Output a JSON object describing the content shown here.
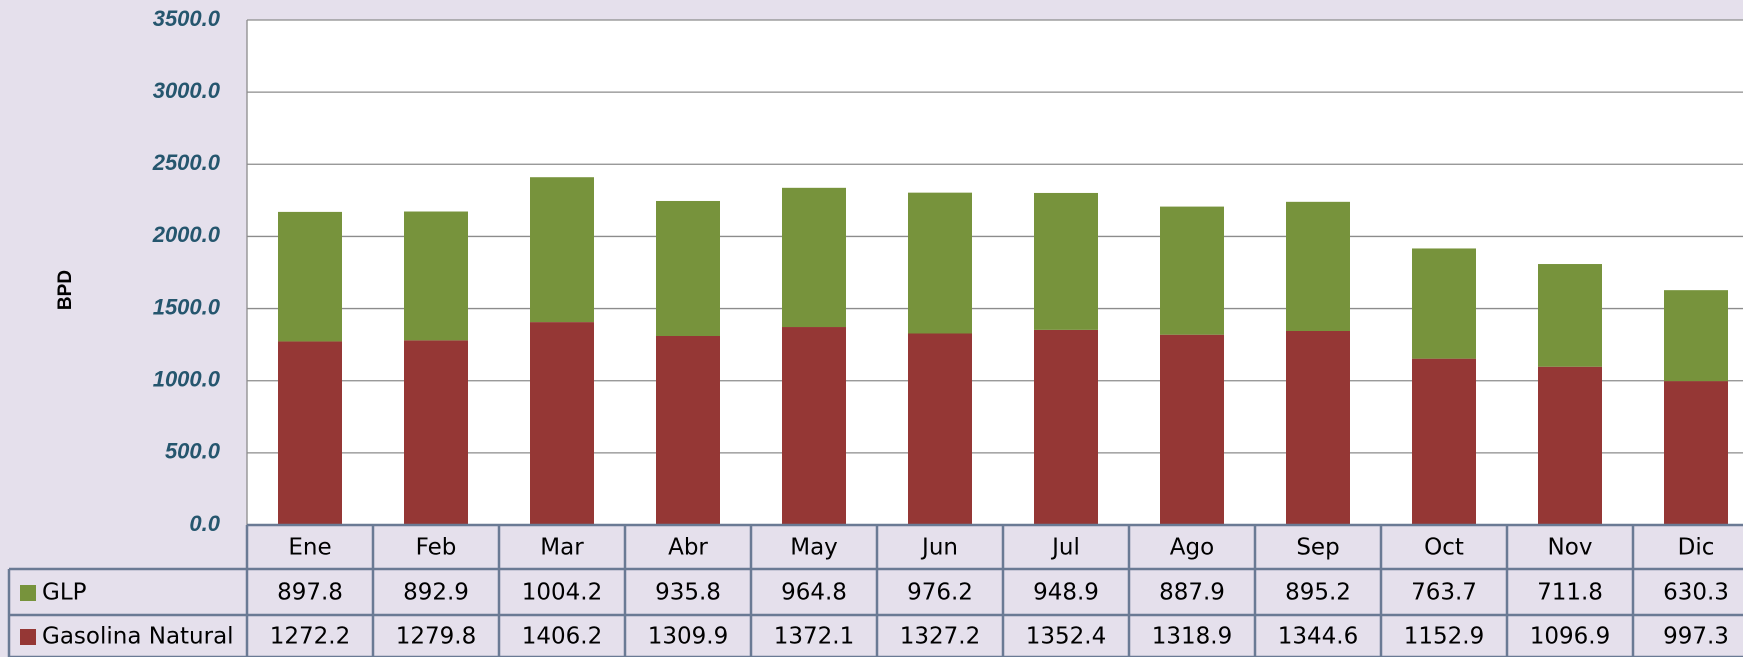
{
  "chart_data": {
    "type": "stacked-bar",
    "ylabel": "BPD",
    "categories": [
      "Ene",
      "Feb",
      "Mar",
      "Abr",
      "May",
      "Jun",
      "Jul",
      "Ago",
      "Sep",
      "Oct",
      "Nov",
      "Dic"
    ],
    "series": [
      {
        "name": "GLP",
        "color": "#77933c",
        "values": [
          897.8,
          892.9,
          1004.2,
          935.8,
          964.8,
          976.2,
          948.9,
          887.9,
          895.2,
          763.7,
          711.8,
          630.3
        ]
      },
      {
        "name": "Gasolina Natural",
        "color": "#953735",
        "values": [
          1272.2,
          1279.8,
          1406.2,
          1309.9,
          1372.1,
          1327.2,
          1352.4,
          1318.9,
          1344.6,
          1152.9,
          1096.9,
          997.3
        ]
      }
    ],
    "ylim": [
      0,
      3500
    ],
    "yticks": [
      {
        "value": 0,
        "label": "0.0"
      },
      {
        "value": 500,
        "label": "500.0"
      },
      {
        "value": 1000,
        "label": "1000.0"
      },
      {
        "value": 1500,
        "label": "1500.0"
      },
      {
        "value": 2000,
        "label": "2000.0"
      },
      {
        "value": 2500,
        "label": "2500.0"
      },
      {
        "value": 3000,
        "label": "3000.0"
      },
      {
        "value": 3500,
        "label": "3500.0"
      }
    ],
    "grid": true
  }
}
